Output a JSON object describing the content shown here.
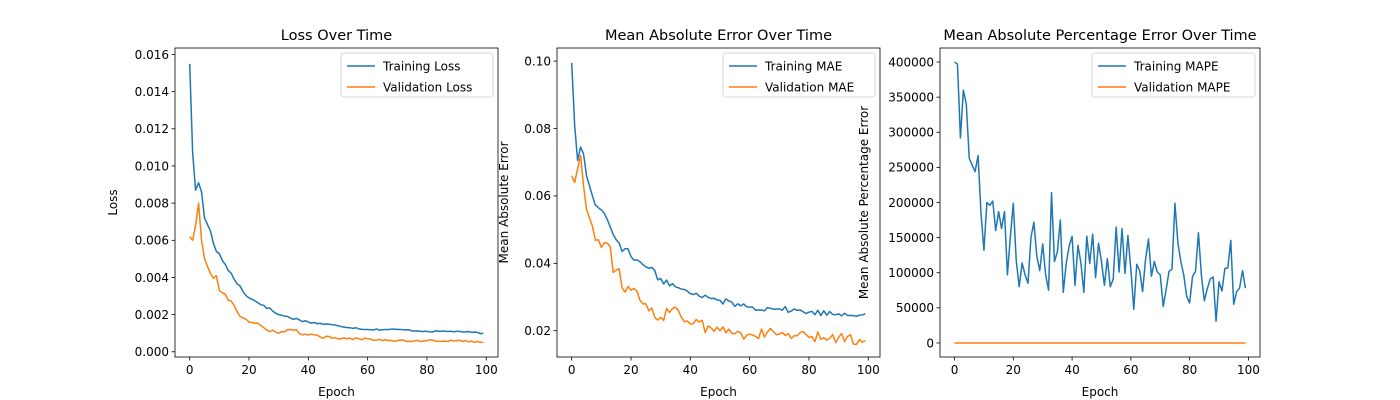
{
  "chart_data": [
    {
      "type": "line",
      "title": "Loss Over Time",
      "xlabel": "Epoch",
      "ylabel": "Loss",
      "xlim": [
        -4.95,
        103.95
      ],
      "ylim": [
        -0.00028,
        0.01635
      ],
      "xticks": [
        0,
        20,
        40,
        60,
        80,
        100
      ],
      "xtick_labels": [
        "0",
        "20",
        "40",
        "60",
        "80",
        "100"
      ],
      "yticks": [
        0,
        0.002,
        0.004,
        0.006,
        0.008,
        0.01,
        0.012,
        0.014,
        0.016
      ],
      "ytick_labels": [
        "0.000",
        "0.002",
        "0.004",
        "0.006",
        "0.008",
        "0.010",
        "0.012",
        "0.014",
        "0.016"
      ],
      "legend_position": "upper-right",
      "grid": false,
      "series": [
        {
          "name": "Training Loss",
          "color": "#1f77b4",
          "anchors": [
            [
              0,
              0.0155
            ],
            [
              1,
              0.0107
            ],
            [
              2,
              0.0087
            ],
            [
              3,
              0.0091
            ],
            [
              4,
              0.0086
            ],
            [
              5,
              0.0072
            ],
            [
              7,
              0.0065
            ],
            [
              9,
              0.0054
            ],
            [
              12,
              0.0047
            ],
            [
              15,
              0.0039
            ],
            [
              20,
              0.0029
            ],
            [
              25,
              0.0025
            ],
            [
              30,
              0.002
            ],
            [
              40,
              0.0016
            ],
            [
              50,
              0.0014
            ],
            [
              60,
              0.0012
            ],
            [
              70,
              0.0012
            ],
            [
              80,
              0.0011
            ],
            [
              90,
              0.0011
            ],
            [
              99,
              0.001
            ]
          ]
        },
        {
          "name": "Validation Loss",
          "color": "#ff7f0e",
          "anchors": [
            [
              0,
              0.0062
            ],
            [
              1,
              0.006
            ],
            [
              2,
              0.0068
            ],
            [
              3,
              0.008
            ],
            [
              4,
              0.006
            ],
            [
              5,
              0.005
            ],
            [
              7,
              0.0042
            ],
            [
              9,
              0.0041
            ],
            [
              10,
              0.0033
            ],
            [
              12,
              0.0031
            ],
            [
              15,
              0.0025
            ],
            [
              17,
              0.0019
            ],
            [
              20,
              0.0016
            ],
            [
              25,
              0.0013
            ],
            [
              30,
              0.001
            ],
            [
              34,
              0.0012
            ],
            [
              40,
              0.0009
            ],
            [
              50,
              0.0007
            ],
            [
              60,
              0.0007
            ],
            [
              70,
              0.0006
            ],
            [
              80,
              0.0006
            ],
            [
              90,
              0.0006
            ],
            [
              99,
              0.0005
            ]
          ]
        }
      ]
    },
    {
      "type": "line",
      "title": "Mean Absolute Error Over Time",
      "xlabel": "Epoch",
      "ylabel": "Mean Absolute Error",
      "xlim": [
        -4.95,
        103.95
      ],
      "ylim": [
        0.0122,
        0.1039
      ],
      "xticks": [
        0,
        20,
        40,
        60,
        80,
        100
      ],
      "xtick_labels": [
        "0",
        "20",
        "40",
        "60",
        "80",
        "100"
      ],
      "yticks": [
        0.02,
        0.04,
        0.06,
        0.08,
        0.1
      ],
      "ytick_labels": [
        "0.02",
        "0.04",
        "0.06",
        "0.08",
        "0.10"
      ],
      "legend_position": "upper-right",
      "grid": false,
      "series": [
        {
          "name": "Training MAE",
          "color": "#1f77b4",
          "anchors": [
            [
              0,
              0.0995
            ],
            [
              1,
              0.081
            ],
            [
              2,
              0.0705
            ],
            [
              3,
              0.0745
            ],
            [
              4,
              0.0725
            ],
            [
              5,
              0.066
            ],
            [
              7,
              0.06
            ],
            [
              9,
              0.0565
            ],
            [
              12,
              0.053
            ],
            [
              15,
              0.047
            ],
            [
              20,
              0.042
            ],
            [
              25,
              0.039
            ],
            [
              30,
              0.0355
            ],
            [
              35,
              0.033
            ],
            [
              40,
              0.031
            ],
            [
              50,
              0.029
            ],
            [
              60,
              0.027
            ],
            [
              70,
              0.0265
            ],
            [
              80,
              0.0255
            ],
            [
              90,
              0.025
            ],
            [
              99,
              0.025
            ]
          ]
        },
        {
          "name": "Validation MAE",
          "color": "#ff7f0e",
          "anchors": [
            [
              0,
              0.066
            ],
            [
              1,
              0.064
            ],
            [
              2,
              0.068
            ],
            [
              3,
              0.072
            ],
            [
              4,
              0.063
            ],
            [
              5,
              0.056
            ],
            [
              7,
              0.051
            ],
            [
              9,
              0.047
            ],
            [
              12,
              0.046
            ],
            [
              15,
              0.038
            ],
            [
              20,
              0.032
            ],
            [
              25,
              0.028
            ],
            [
              30,
              0.024
            ],
            [
              35,
              0.027
            ],
            [
              40,
              0.022
            ],
            [
              50,
              0.02
            ],
            [
              60,
              0.019
            ],
            [
              70,
              0.019
            ],
            [
              80,
              0.018
            ],
            [
              90,
              0.018
            ],
            [
              99,
              0.017
            ]
          ]
        }
      ]
    },
    {
      "type": "line",
      "title": "Mean Absolute Percentage Error Over Time",
      "xlabel": "Epoch",
      "ylabel": "Mean Absolute Percentage Error",
      "xlim": [
        -4.95,
        103.95
      ],
      "ylim": [
        -20000,
        420000
      ],
      "xticks": [
        0,
        20,
        40,
        60,
        80,
        100
      ],
      "xtick_labels": [
        "0",
        "20",
        "40",
        "60",
        "80",
        "100"
      ],
      "yticks": [
        0,
        50000,
        100000,
        150000,
        200000,
        250000,
        300000,
        350000,
        400000
      ],
      "ytick_labels": [
        "0",
        "50000",
        "100000",
        "150000",
        "200000",
        "250000",
        "300000",
        "350000",
        "400000"
      ],
      "legend_position": "upper-right",
      "grid": false,
      "series": [
        {
          "name": "Training MAPE",
          "color": "#1f77b4",
          "values": [
            400000,
            397000,
            292000,
            360000,
            340000,
            263000,
            253000,
            244000,
            267000,
            185000,
            132000,
            200000,
            196000,
            202000,
            160000,
            187000,
            163000,
            187000,
            97000,
            152000,
            199000,
            117000,
            80000,
            114000,
            97000,
            85000,
            150000,
            172000,
            123000,
            103000,
            141000,
            97000,
            75000,
            214000,
            116000,
            130000,
            175000,
            72000,
            113000,
            138000,
            152000,
            82000,
            139000,
            114000,
            72000,
            152000,
            113000,
            155000,
            93000,
            142000,
            116000,
            82000,
            120000,
            80000,
            91000,
            165000,
            101000,
            163000,
            99000,
            153000,
            105000,
            48000,
            112000,
            103000,
            73000,
            119000,
            148000,
            95000,
            116000,
            101000,
            97000,
            52000,
            76000,
            102000,
            105000,
            199000,
            143000,
            116000,
            97000,
            66000,
            57000,
            95000,
            102000,
            157000,
            97000,
            60000,
            77000,
            91000,
            94000,
            31000,
            87000,
            74000,
            106000,
            107000,
            146000,
            55000,
            73000,
            78000,
            103000,
            78000
          ]
        },
        {
          "name": "Validation MAPE",
          "color": "#ff7f0e",
          "values": [
            0
          ]
        }
      ]
    }
  ]
}
